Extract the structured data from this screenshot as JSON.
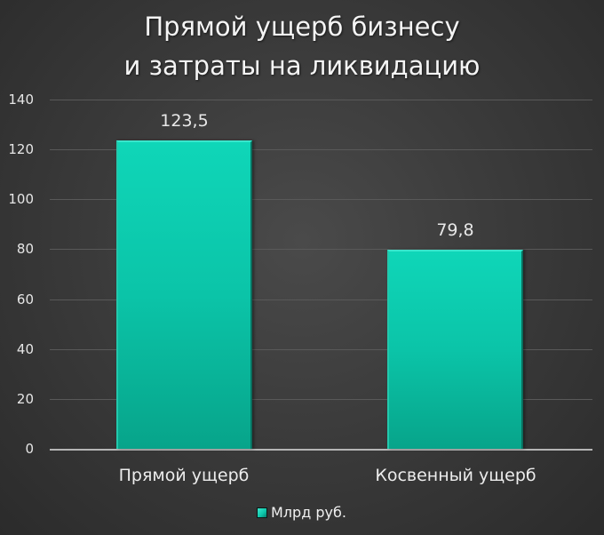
{
  "chart_data": {
    "type": "bar",
    "title": "Прямой ущерб бизнесу и затраты на ликвидацию",
    "title_lines": [
      "Прямой ущерб бизнесу",
      "и затраты на ликвидацию"
    ],
    "categories": [
      "Прямой ущерб",
      "Косвенный ущерб"
    ],
    "series": [
      {
        "name": "Млрд руб.",
        "values": [
          123.5,
          79.8
        ],
        "labels": [
          "123,5",
          "79,8"
        ],
        "color": "#0bc4a8"
      }
    ],
    "xlabel": "",
    "ylabel": "",
    "ylim": [
      0,
      140
    ],
    "yticks": [
      "0",
      "20",
      "40",
      "60",
      "80",
      "100",
      "120",
      "140"
    ],
    "grid": true,
    "legend_position": "bottom"
  },
  "colors": {
    "background": "#3a3a3a",
    "bar": "#0bc4a8",
    "gridline": "#595959",
    "axis": "#b5b5b5",
    "text": "#f0f0f0"
  }
}
